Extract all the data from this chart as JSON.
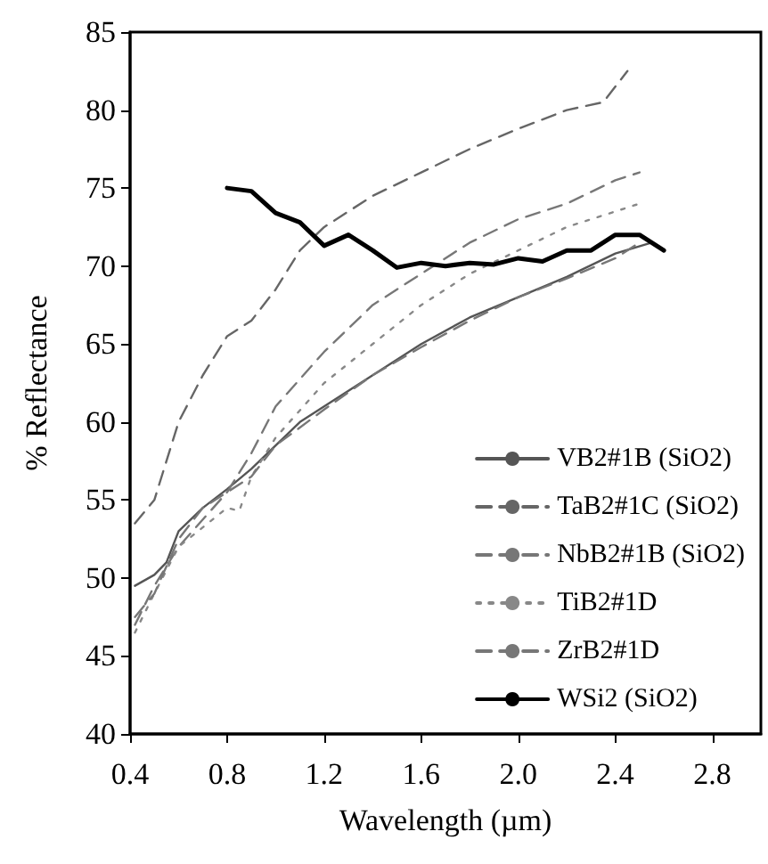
{
  "chart_data": {
    "type": "line",
    "xlabel": "Wavelength (µm)",
    "ylabel": "% Reflectance",
    "xlim": [
      0.4,
      3.0
    ],
    "xticks": [
      0.4,
      0.8,
      1.2,
      1.6,
      {
        "value": 2,
        "label": "2.0"
      },
      2.4,
      2.8
    ],
    "ylim": [
      40,
      85
    ],
    "yticks": [
      40,
      45,
      50,
      55,
      60,
      65,
      70,
      75,
      80,
      85
    ],
    "grid": false,
    "legend": "bottom right",
    "marker": "none",
    "series": [
      {
        "name": "VB2#1B (SiO2)",
        "color": "#555555",
        "line_style": "solid",
        "x": [
          0.42,
          0.5,
          0.55,
          0.6,
          0.7,
          0.8,
          0.9,
          1.0,
          1.1,
          1.2,
          1.4,
          1.6,
          1.8,
          2.0,
          2.2,
          2.4,
          2.55
        ],
        "values": [
          49.5,
          50.2,
          51,
          53,
          54.5,
          55.7,
          57,
          58.5,
          60,
          61,
          63,
          65,
          66.7,
          68,
          69.3,
          70.8,
          71.5
        ]
      },
      {
        "name": "TaB2#1C (SiO2)",
        "color": "#666666",
        "line_style": "dashed",
        "x": [
          0.42,
          0.5,
          0.6,
          0.7,
          0.8,
          0.9,
          1.0,
          1.1,
          1.2,
          1.4,
          1.6,
          1.8,
          2.0,
          2.2,
          2.35,
          2.45
        ],
        "values": [
          53.5,
          55,
          60,
          63,
          65.5,
          66.5,
          68.5,
          71,
          72.5,
          74.5,
          76,
          77.5,
          78.8,
          80,
          80.5,
          82.5
        ]
      },
      {
        "name": "NbB2#1B (SiO2)",
        "color": "#777777",
        "line_style": "dashed",
        "x": [
          0.42,
          0.5,
          0.6,
          0.8,
          0.9,
          1.0,
          1.2,
          1.4,
          1.6,
          1.8,
          2.0,
          2.2,
          2.4,
          2.5
        ],
        "values": [
          47,
          49.5,
          52,
          55.5,
          58,
          61,
          64.5,
          67.5,
          69.5,
          71.5,
          73,
          74,
          75.5,
          76
        ]
      },
      {
        "name": "TiB2#1D",
        "color": "#888888",
        "line_style": "dotted",
        "x": [
          0.42,
          0.5,
          0.6,
          0.8,
          0.85,
          0.9,
          1.0,
          1.2,
          1.4,
          1.6,
          1.8,
          2.0,
          2.2,
          2.4,
          2.5
        ],
        "values": [
          46.5,
          49,
          52,
          54.5,
          54.3,
          56.5,
          59,
          62.5,
          65,
          67.5,
          69.5,
          71,
          72.5,
          73.5,
          74
        ]
      },
      {
        "name": "ZrB2#1D",
        "color": "#777777",
        "line_style": "dashed",
        "x": [
          0.42,
          0.5,
          0.6,
          0.7,
          0.8,
          0.9,
          1.0,
          1.2,
          1.4,
          1.6,
          1.8,
          2.0,
          2.2,
          2.4,
          2.5
        ],
        "values": [
          47.5,
          49,
          52.5,
          54.5,
          55.5,
          56.5,
          58.5,
          60.8,
          63,
          64.8,
          66.5,
          68,
          69.2,
          70.5,
          71.5
        ]
      },
      {
        "name": "WSi2 (SiO2)",
        "color": "#000000",
        "line_style": "solid",
        "x": [
          0.8,
          0.9,
          1.0,
          1.1,
          1.2,
          1.3,
          1.4,
          1.5,
          1.6,
          1.7,
          1.8,
          1.9,
          2.0,
          2.1,
          2.2,
          2.3,
          2.4,
          2.5,
          2.6
        ],
        "values": [
          75,
          74.8,
          73.4,
          72.8,
          71.3,
          72,
          71,
          69.9,
          70.2,
          70,
          70.2,
          70.1,
          70.5,
          70.3,
          71,
          71,
          72,
          72,
          71
        ]
      }
    ]
  }
}
